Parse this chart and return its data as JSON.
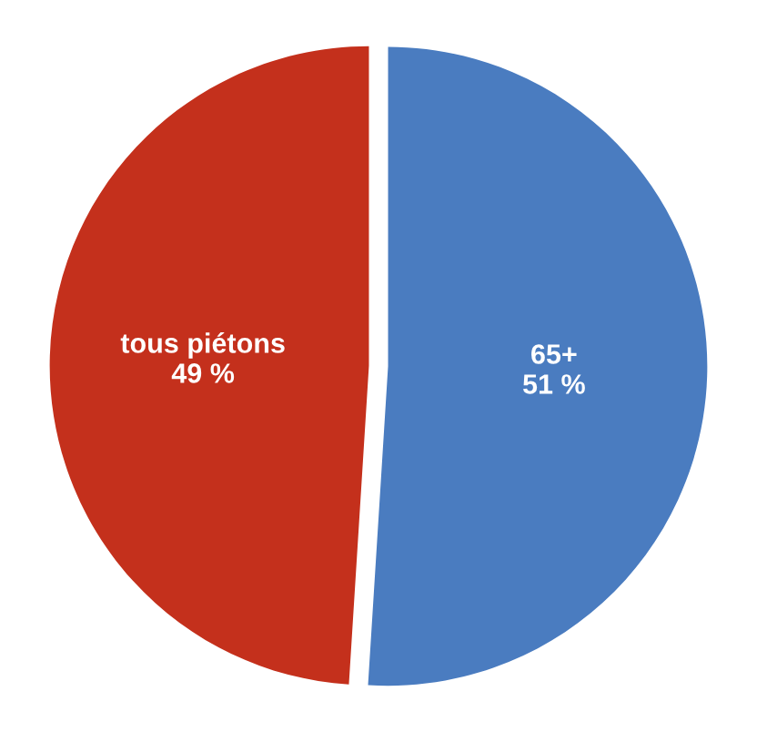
{
  "chart_data": {
    "type": "pie",
    "categories": [
      "65+",
      "tous piétons"
    ],
    "values": [
      51,
      49
    ],
    "value_labels": [
      "51 %",
      "49 %"
    ],
    "colors": [
      "#4a7cc0",
      "#c4301c"
    ]
  }
}
